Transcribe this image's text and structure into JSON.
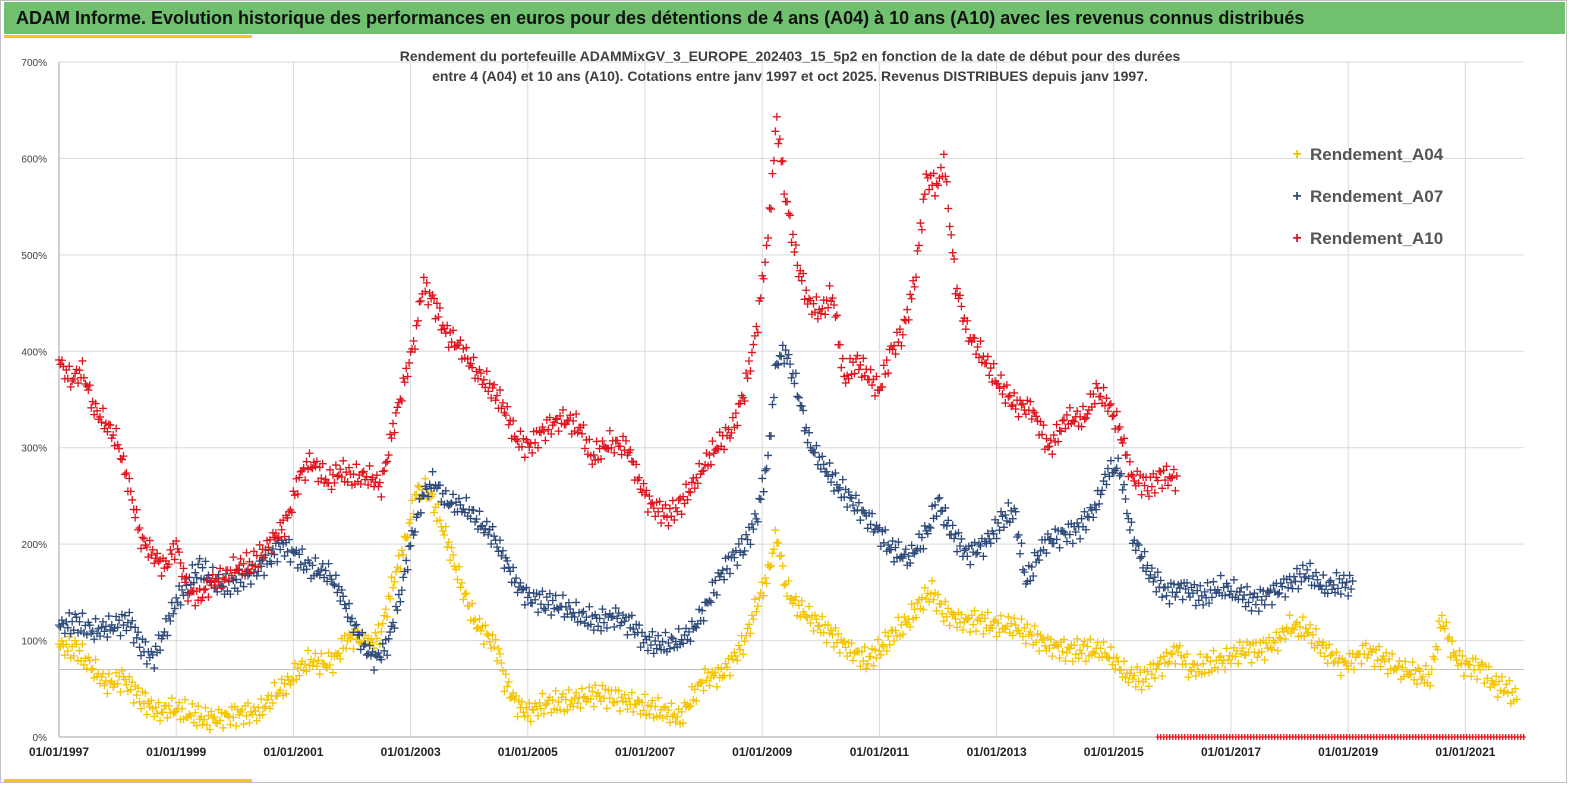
{
  "header": {
    "title": "ADAM Informe. Evolution historique des performances en euros pour des détentions de 4 ans (A04) à 10 ans (A10) avec les revenus connus distribués"
  },
  "colors": {
    "header_bg": "#70c070",
    "A04": "#f5c400",
    "A07": "#2e4a7a",
    "A10": "#e0141e",
    "grid": "#d9d9d9"
  },
  "chart_data": {
    "type": "scatter",
    "title_line1": "Rendement du portefeuille ADAMMixGV_3_EUROPE_202403_15_5p2  en fonction de la date de début pour des durées",
    "title_line2": "entre 4 (A04) et 10 ans (A10). Cotations  entre janv 1997 et oct 2025. Revenus DISTRIBUES depuis janv 1997.",
    "xlabel": "",
    "ylabel": "",
    "xlim": [
      1997.0,
      2022.0
    ],
    "ylim": [
      0,
      700
    ],
    "y_ticks": [
      "0%",
      "100%",
      "200%",
      "300%",
      "400%",
      "500%",
      "600%",
      "700%"
    ],
    "x_tick_labels": [
      "01/01/1997",
      "01/01/1999",
      "01/01/2001",
      "01/01/2003",
      "01/01/2005",
      "01/01/2007",
      "01/01/2009",
      "01/01/2011",
      "01/01/2013",
      "01/01/2015",
      "01/01/2017",
      "01/01/2019",
      "01/01/2021"
    ],
    "x_tick_values": [
      1997,
      1999,
      2001,
      2003,
      2005,
      2007,
      2009,
      2011,
      2013,
      2015,
      2017,
      2019,
      2021
    ],
    "grid": true,
    "legend_position": "top-right",
    "series": [
      {
        "name": "Rendement_A04",
        "color": "#f5c400",
        "points": [
          [
            1997.0,
            95
          ],
          [
            1997.3,
            90
          ],
          [
            1997.6,
            70
          ],
          [
            1997.8,
            55
          ],
          [
            1998.1,
            60
          ],
          [
            1998.4,
            40
          ],
          [
            1998.7,
            25
          ],
          [
            1998.9,
            30
          ],
          [
            1999.2,
            25
          ],
          [
            1999.5,
            18
          ],
          [
            1999.8,
            20
          ],
          [
            2000.1,
            25
          ],
          [
            2000.4,
            25
          ],
          [
            2000.7,
            45
          ],
          [
            2000.9,
            55
          ],
          [
            2001.1,
            70
          ],
          [
            2001.3,
            80
          ],
          [
            2001.5,
            75
          ],
          [
            2001.7,
            80
          ],
          [
            2001.9,
            100
          ],
          [
            2002.1,
            105
          ],
          [
            2002.3,
            95
          ],
          [
            2002.5,
            110
          ],
          [
            2002.7,
            160
          ],
          [
            2002.9,
            200
          ],
          [
            2003.1,
            255
          ],
          [
            2003.3,
            255
          ],
          [
            2003.5,
            225
          ],
          [
            2003.7,
            190
          ],
          [
            2003.9,
            150
          ],
          [
            2004.1,
            120
          ],
          [
            2004.3,
            105
          ],
          [
            2004.5,
            90
          ],
          [
            2004.6,
            60
          ],
          [
            2004.8,
            35
          ],
          [
            2005.0,
            25
          ],
          [
            2005.3,
            35
          ],
          [
            2005.6,
            35
          ],
          [
            2005.9,
            40
          ],
          [
            2006.2,
            45
          ],
          [
            2006.5,
            40
          ],
          [
            2006.8,
            35
          ],
          [
            2007.1,
            30
          ],
          [
            2007.4,
            25
          ],
          [
            2007.6,
            20
          ],
          [
            2007.8,
            40
          ],
          [
            2008.0,
            60
          ],
          [
            2008.3,
            65
          ],
          [
            2008.5,
            80
          ],
          [
            2008.7,
            100
          ],
          [
            2008.9,
            135
          ],
          [
            2009.1,
            170
          ],
          [
            2009.25,
            210
          ],
          [
            2009.4,
            155
          ],
          [
            2009.6,
            135
          ],
          [
            2009.9,
            120
          ],
          [
            2010.2,
            105
          ],
          [
            2010.5,
            90
          ],
          [
            2010.8,
            80
          ],
          [
            2011.0,
            90
          ],
          [
            2011.2,
            105
          ],
          [
            2011.5,
            120
          ],
          [
            2011.7,
            140
          ],
          [
            2011.9,
            150
          ],
          [
            2012.1,
            130
          ],
          [
            2012.4,
            120
          ],
          [
            2012.7,
            120
          ],
          [
            2013.0,
            115
          ],
          [
            2013.3,
            115
          ],
          [
            2013.6,
            105
          ],
          [
            2013.9,
            95
          ],
          [
            2014.2,
            90
          ],
          [
            2014.5,
            90
          ],
          [
            2014.8,
            90
          ],
          [
            2015.0,
            80
          ],
          [
            2015.2,
            65
          ],
          [
            2015.5,
            60
          ],
          [
            2015.8,
            75
          ],
          [
            2016.1,
            90
          ],
          [
            2016.3,
            70
          ],
          [
            2016.6,
            75
          ],
          [
            2016.9,
            80
          ],
          [
            2017.2,
            90
          ],
          [
            2017.5,
            90
          ],
          [
            2017.8,
            100
          ],
          [
            2018.0,
            115
          ],
          [
            2018.3,
            110
          ],
          [
            2018.6,
            90
          ],
          [
            2018.9,
            75
          ],
          [
            2019.1,
            80
          ],
          [
            2019.3,
            90
          ],
          [
            2019.6,
            80
          ],
          [
            2019.9,
            70
          ],
          [
            2020.2,
            65
          ],
          [
            2020.4,
            60
          ],
          [
            2020.6,
            125
          ],
          [
            2020.8,
            85
          ],
          [
            2021.0,
            75
          ],
          [
            2021.3,
            70
          ],
          [
            2021.5,
            55
          ],
          [
            2021.7,
            50
          ],
          [
            2021.9,
            38
          ]
        ]
      },
      {
        "name": "Rendement_A07",
        "color": "#2e4a7a",
        "points": [
          [
            1997.0,
            115
          ],
          [
            1997.3,
            118
          ],
          [
            1997.6,
            110
          ],
          [
            1997.9,
            115
          ],
          [
            1998.2,
            120
          ],
          [
            1998.4,
            95
          ],
          [
            1998.6,
            80
          ],
          [
            1998.8,
            110
          ],
          [
            1999.0,
            140
          ],
          [
            1999.2,
            160
          ],
          [
            1999.4,
            175
          ],
          [
            1999.6,
            165
          ],
          [
            1999.8,
            155
          ],
          [
            2000.0,
            160
          ],
          [
            2000.3,
            170
          ],
          [
            2000.6,
            185
          ],
          [
            2000.8,
            200
          ],
          [
            2001.0,
            190
          ],
          [
            2001.3,
            175
          ],
          [
            2001.6,
            170
          ],
          [
            2001.8,
            150
          ],
          [
            2002.0,
            120
          ],
          [
            2002.2,
            95
          ],
          [
            2002.4,
            80
          ],
          [
            2002.6,
            95
          ],
          [
            2002.8,
            140
          ],
          [
            2003.0,
            200
          ],
          [
            2003.2,
            250
          ],
          [
            2003.4,
            265
          ],
          [
            2003.6,
            245
          ],
          [
            2003.8,
            240
          ],
          [
            2004.0,
            235
          ],
          [
            2004.2,
            220
          ],
          [
            2004.4,
            210
          ],
          [
            2004.6,
            185
          ],
          [
            2004.8,
            160
          ],
          [
            2005.0,
            145
          ],
          [
            2005.3,
            140
          ],
          [
            2005.6,
            135
          ],
          [
            2005.9,
            125
          ],
          [
            2006.2,
            120
          ],
          [
            2006.5,
            125
          ],
          [
            2006.8,
            115
          ],
          [
            2007.0,
            100
          ],
          [
            2007.3,
            95
          ],
          [
            2007.6,
            100
          ],
          [
            2007.8,
            110
          ],
          [
            2008.0,
            130
          ],
          [
            2008.3,
            170
          ],
          [
            2008.5,
            185
          ],
          [
            2008.7,
            200
          ],
          [
            2008.9,
            225
          ],
          [
            2009.1,
            290
          ],
          [
            2009.25,
            390
          ],
          [
            2009.4,
            400
          ],
          [
            2009.6,
            360
          ],
          [
            2009.8,
            305
          ],
          [
            2010.0,
            285
          ],
          [
            2010.3,
            260
          ],
          [
            2010.6,
            240
          ],
          [
            2010.9,
            220
          ],
          [
            2011.2,
            195
          ],
          [
            2011.5,
            185
          ],
          [
            2011.8,
            210
          ],
          [
            2012.0,
            245
          ],
          [
            2012.2,
            215
          ],
          [
            2012.5,
            190
          ],
          [
            2012.8,
            200
          ],
          [
            2013.1,
            225
          ],
          [
            2013.3,
            235
          ],
          [
            2013.5,
            160
          ],
          [
            2013.8,
            200
          ],
          [
            2014.1,
            210
          ],
          [
            2014.4,
            215
          ],
          [
            2014.7,
            240
          ],
          [
            2014.9,
            275
          ],
          [
            2015.1,
            280
          ],
          [
            2015.3,
            210
          ],
          [
            2015.6,
            170
          ],
          [
            2015.9,
            150
          ],
          [
            2016.2,
            155
          ],
          [
            2016.5,
            145
          ],
          [
            2016.8,
            155
          ],
          [
            2017.1,
            150
          ],
          [
            2017.4,
            140
          ],
          [
            2017.7,
            150
          ],
          [
            2018.0,
            160
          ],
          [
            2018.3,
            170
          ],
          [
            2018.6,
            155
          ],
          [
            2018.9,
            160
          ],
          [
            2019.1,
            155
          ]
        ]
      },
      {
        "name": "Rendement_A10",
        "color": "#e0141e",
        "points": [
          [
            1997.0,
            390
          ],
          [
            1997.2,
            370
          ],
          [
            1997.4,
            380
          ],
          [
            1997.6,
            340
          ],
          [
            1997.8,
            325
          ],
          [
            1998.0,
            305
          ],
          [
            1998.2,
            260
          ],
          [
            1998.4,
            205
          ],
          [
            1998.6,
            190
          ],
          [
            1998.8,
            175
          ],
          [
            1999.0,
            200
          ],
          [
            1999.2,
            150
          ],
          [
            1999.4,
            145
          ],
          [
            1999.6,
            160
          ],
          [
            1999.8,
            165
          ],
          [
            2000.0,
            175
          ],
          [
            2000.3,
            180
          ],
          [
            2000.6,
            200
          ],
          [
            2000.9,
            225
          ],
          [
            2001.1,
            270
          ],
          [
            2001.3,
            285
          ],
          [
            2001.6,
            265
          ],
          [
            2001.8,
            275
          ],
          [
            2002.0,
            270
          ],
          [
            2002.3,
            270
          ],
          [
            2002.5,
            260
          ],
          [
            2002.7,
            320
          ],
          [
            2002.9,
            370
          ],
          [
            2003.1,
            420
          ],
          [
            2003.2,
            470
          ],
          [
            2003.4,
            450
          ],
          [
            2003.6,
            420
          ],
          [
            2003.9,
            400
          ],
          [
            2004.1,
            380
          ],
          [
            2004.4,
            360
          ],
          [
            2004.6,
            340
          ],
          [
            2004.8,
            310
          ],
          [
            2005.0,
            300
          ],
          [
            2005.3,
            320
          ],
          [
            2005.6,
            330
          ],
          [
            2005.9,
            320
          ],
          [
            2006.1,
            290
          ],
          [
            2006.4,
            305
          ],
          [
            2006.7,
            300
          ],
          [
            2006.9,
            265
          ],
          [
            2007.1,
            240
          ],
          [
            2007.4,
            230
          ],
          [
            2007.6,
            240
          ],
          [
            2007.9,
            270
          ],
          [
            2008.2,
            300
          ],
          [
            2008.5,
            320
          ],
          [
            2008.7,
            360
          ],
          [
            2008.9,
            420
          ],
          [
            2009.1,
            520
          ],
          [
            2009.25,
            640
          ],
          [
            2009.4,
            560
          ],
          [
            2009.6,
            490
          ],
          [
            2009.8,
            450
          ],
          [
            2010.0,
            440
          ],
          [
            2010.2,
            460
          ],
          [
            2010.4,
            370
          ],
          [
            2010.6,
            390
          ],
          [
            2010.8,
            375
          ],
          [
            2011.0,
            360
          ],
          [
            2011.2,
            400
          ],
          [
            2011.4,
            420
          ],
          [
            2011.6,
            470
          ],
          [
            2011.8,
            580
          ],
          [
            2012.0,
            570
          ],
          [
            2012.1,
            600
          ],
          [
            2012.3,
            470
          ],
          [
            2012.5,
            420
          ],
          [
            2012.8,
            390
          ],
          [
            2013.0,
            370
          ],
          [
            2013.3,
            345
          ],
          [
            2013.6,
            340
          ],
          [
            2013.9,
            300
          ],
          [
            2014.2,
            330
          ],
          [
            2014.5,
            330
          ],
          [
            2014.7,
            360
          ],
          [
            2014.9,
            345
          ],
          [
            2015.1,
            320
          ],
          [
            2015.3,
            270
          ],
          [
            2015.6,
            260
          ],
          [
            2015.8,
            270
          ],
          [
            2016.0,
            270
          ],
          [
            2016.1,
            265
          ]
        ]
      }
    ],
    "baseline_marker_start_x": 2015.75,
    "baseline_marker_end_x": 2022.0,
    "legend": [
      "Rendement_A04",
      "Rendement_A07",
      "Rendement_A10"
    ]
  }
}
